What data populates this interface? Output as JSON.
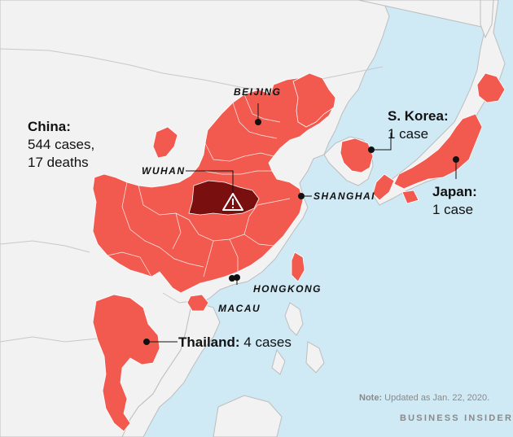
{
  "colors": {
    "sea": "#cfe9f5",
    "land": "#f2f2f2",
    "land_border": "#bdbdbd",
    "affected": "#f25a4f",
    "epicenter": "#7a0f0f",
    "marker": "#111111"
  },
  "labels": {
    "china": {
      "name": "China:",
      "line1": "544 cases,",
      "line2": "17 deaths"
    },
    "skorea": {
      "name": "S. Korea:",
      "line1": "1 case"
    },
    "japan": {
      "name": "Japan:",
      "line1": "1 case"
    },
    "thailand": {
      "name": "Thailand:",
      "line1": "4 cases"
    }
  },
  "cities": {
    "beijing": "BEIJING",
    "wuhan": "WUHAN",
    "shanghai": "SHANGHAI",
    "hongkong": "HONGKONG",
    "macau": "MACAU"
  },
  "icons": {
    "epicenter": "warning-triangle-icon"
  },
  "note": {
    "label": "Note:",
    "text": "Updated as Jan. 22, 2020."
  },
  "brand": "BUSINESS INSIDER"
}
